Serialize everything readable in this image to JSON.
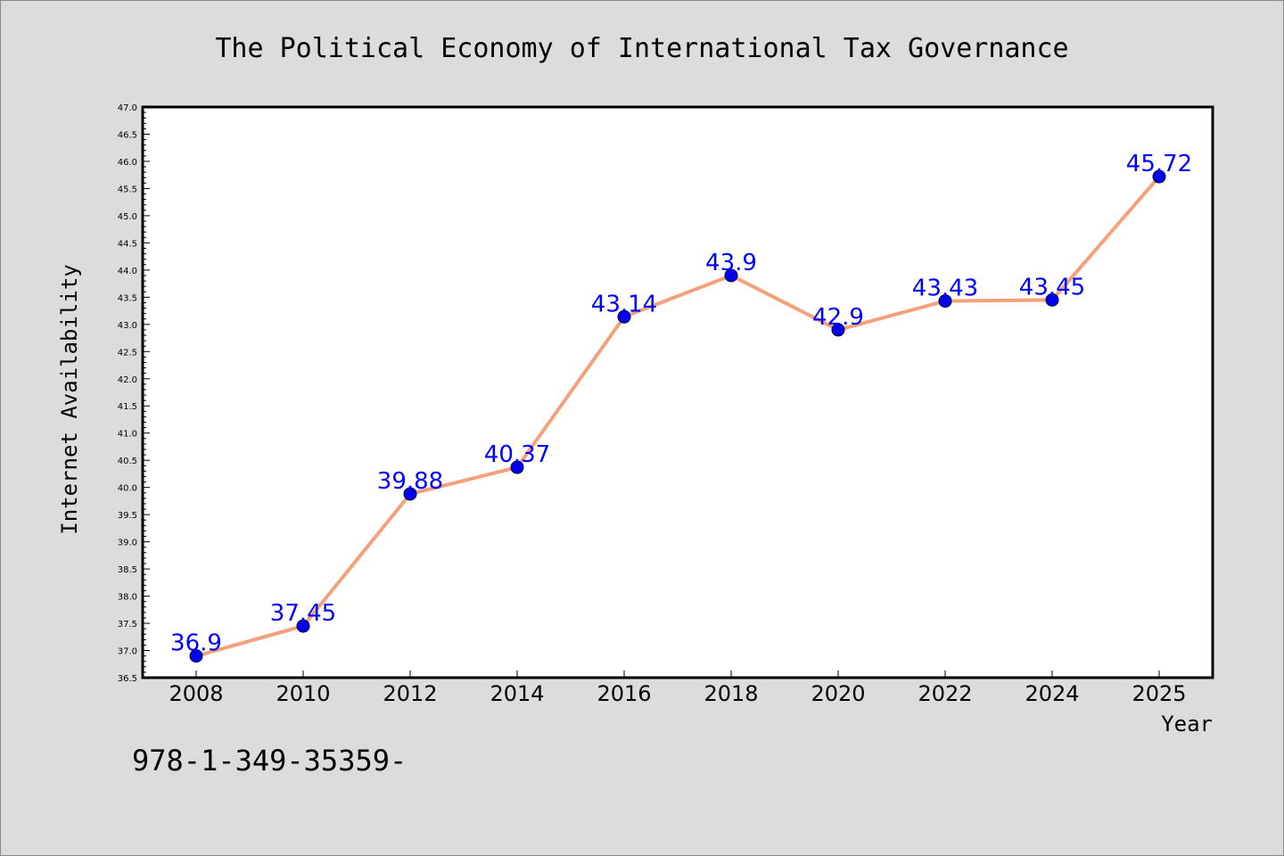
{
  "chart_data": {
    "type": "line",
    "title": "The Political Economy of International Tax Governance",
    "xlabel": "Year",
    "ylabel": "Internet Availability",
    "categories": [
      "2008",
      "2010",
      "2012",
      "2014",
      "2016",
      "2018",
      "2020",
      "2022",
      "2024",
      "2025"
    ],
    "series": [
      {
        "values": [
          36.9,
          37.45,
          39.88,
          40.37,
          43.14,
          43.9,
          42.9,
          43.43,
          43.45,
          45.72
        ],
        "point_labels": [
          "36.9",
          "37.45",
          "39.88",
          "40.37",
          "43.14",
          "43.9",
          "42.9",
          "43.43",
          "43.45",
          "45.72"
        ]
      }
    ],
    "ylim": [
      36.5,
      47.0
    ],
    "ytick_step": 0.5,
    "yticks": [
      "36.5",
      "37.0",
      "37.5",
      "38.0",
      "38.5",
      "39.0",
      "39.5",
      "40.0",
      "40.5",
      "41.0",
      "41.5",
      "42.0",
      "42.5",
      "43.0",
      "43.5",
      "44.0",
      "44.5",
      "45.0",
      "45.5",
      "46.0",
      "46.5",
      "47.0"
    ],
    "grid": false,
    "legend": "none",
    "colors": {
      "line": "#f4a07a",
      "marker": "#0000ee",
      "data_label": "#0000ff",
      "background": "#dcdcdc",
      "plot_bg": "#ffffff"
    }
  },
  "footnote": "978-1-349-35359-"
}
